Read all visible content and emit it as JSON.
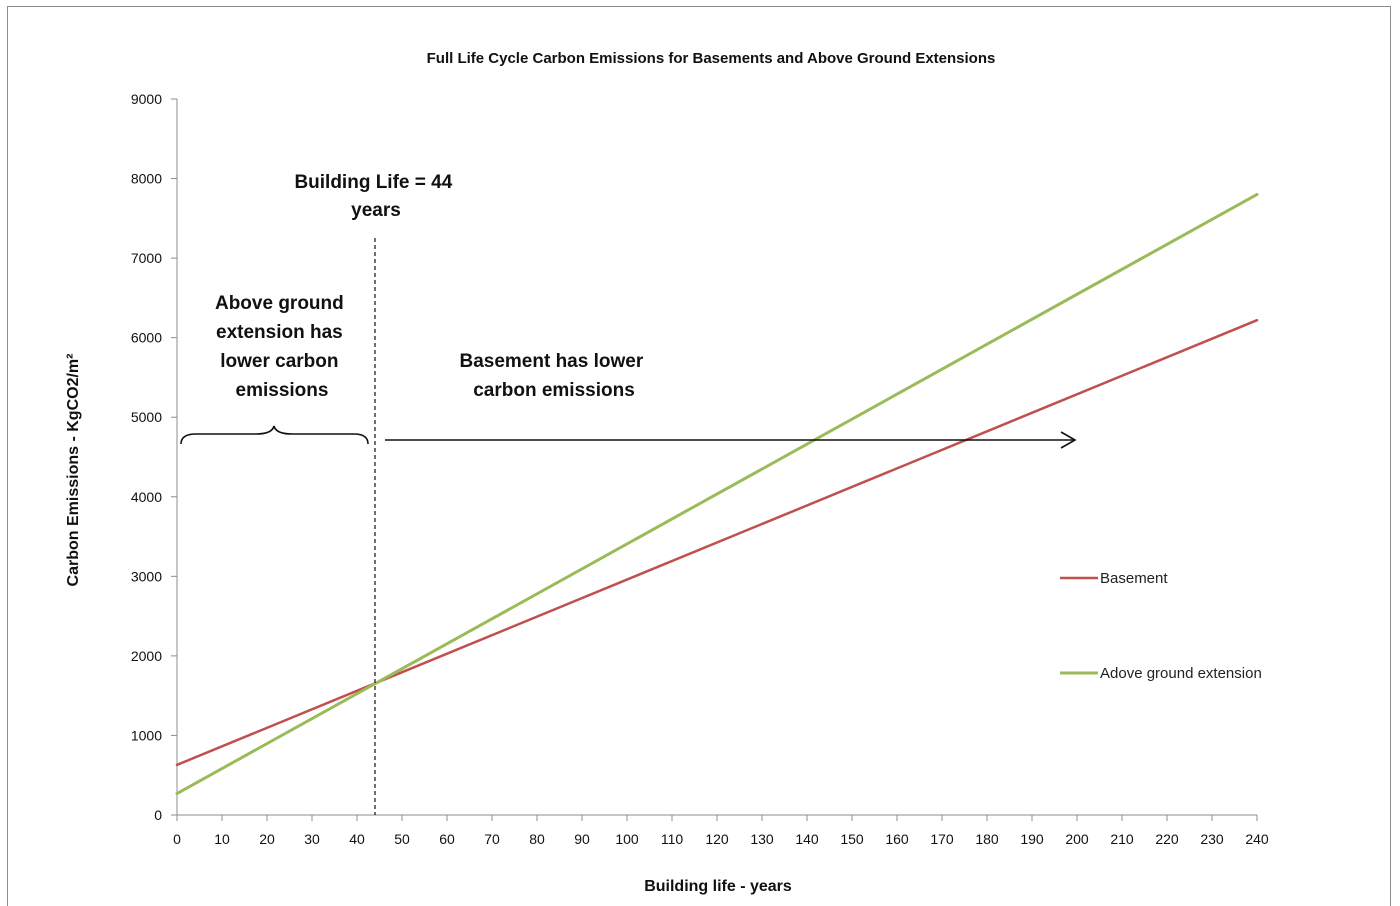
{
  "chart_data": {
    "type": "line",
    "title": "Full Life Cycle Carbon Emissions for Basements and Above Ground Extensions",
    "xlabel": "Building life - years",
    "ylabel": "Carbon Emissions - KgCO2/m²",
    "xlim": [
      0,
      240
    ],
    "ylim": [
      0,
      9000
    ],
    "x_ticks": [
      0,
      10,
      20,
      30,
      40,
      50,
      60,
      70,
      80,
      90,
      100,
      110,
      120,
      130,
      140,
      150,
      160,
      170,
      180,
      190,
      200,
      210,
      220,
      230,
      240
    ],
    "y_ticks": [
      0,
      1000,
      2000,
      3000,
      4000,
      5000,
      6000,
      7000,
      8000,
      9000
    ],
    "grid": false,
    "legend_position": "right",
    "series": [
      {
        "name": "Basement",
        "color": "#c0504d",
        "x": [
          0,
          240
        ],
        "values": [
          630,
          6220
        ]
      },
      {
        "name": "Adove ground extension",
        "color": "#9bbb59",
        "x": [
          0,
          240
        ],
        "values": [
          270,
          7800
        ]
      }
    ],
    "building_life_x": 44,
    "annotations": {
      "building_life": [
        "Building Life = 44",
        "years"
      ],
      "left_region": [
        "Above ground",
        "extension has",
        "lower carbon",
        "emissions"
      ],
      "right_region": [
        "Basement has lower",
        "carbon emissions"
      ]
    }
  }
}
